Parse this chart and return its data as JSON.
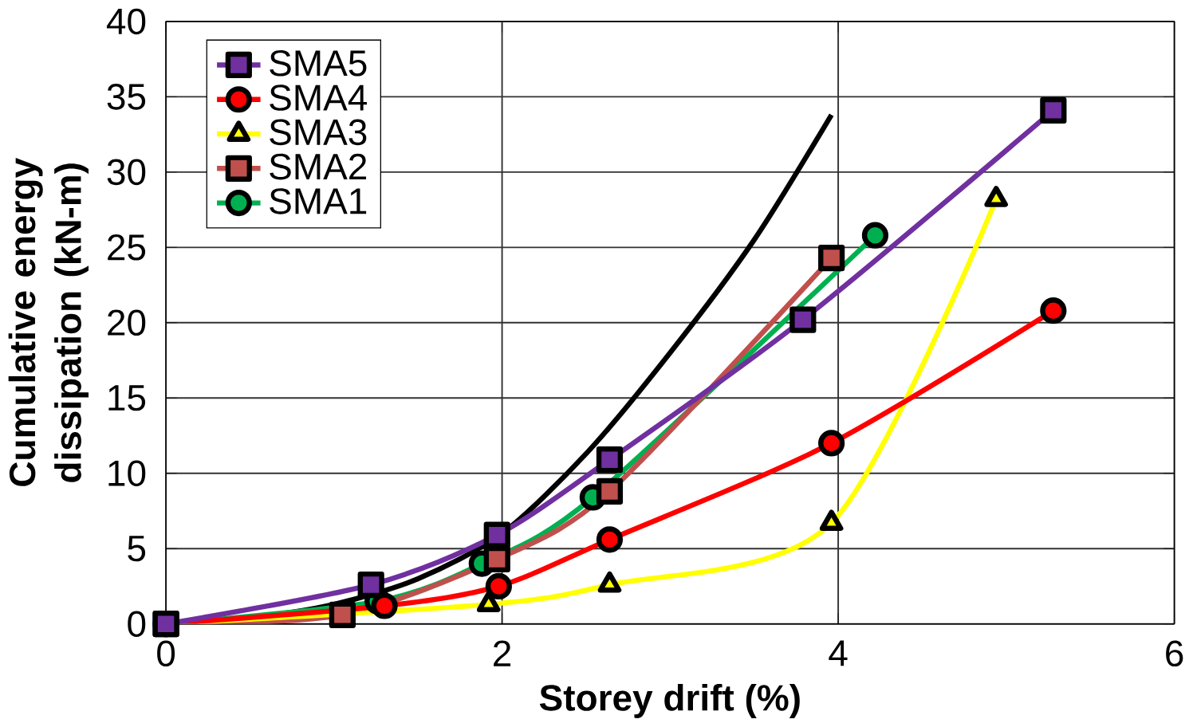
{
  "chart_data": {
    "type": "line",
    "xlabel": "Storey drift (%)",
    "ylabel": "Cumulative energy dissipation (kN-m)",
    "xlim": [
      0,
      6
    ],
    "ylim": [
      0,
      40
    ],
    "xticks": [
      0,
      2,
      4,
      6
    ],
    "yticks": [
      0,
      5,
      10,
      15,
      20,
      25,
      30,
      35,
      40
    ],
    "grid": true,
    "legend": "top left",
    "series": [
      {
        "name": "SMA5",
        "color": "#7030a0",
        "marker": "square",
        "x": [
          0,
          1.22,
          1.97,
          2.64,
          3.79,
          5.28
        ],
        "values": [
          0,
          2.6,
          5.9,
          10.9,
          20.2,
          34.1
        ]
      },
      {
        "name": "SMA4",
        "color": "#ff0000",
        "marker": "circle",
        "x": [
          0,
          1.3,
          1.98,
          2.64,
          3.96,
          5.28
        ],
        "values": [
          0,
          1.2,
          2.5,
          5.6,
          12.0,
          20.8
        ]
      },
      {
        "name": "SMA3",
        "color": "#ffff00",
        "marker": "triangle",
        "x": [
          0,
          1.92,
          2.64,
          3.96,
          4.94
        ],
        "values": [
          0,
          1.3,
          2.6,
          6.7,
          28.2
        ]
      },
      {
        "name": "SMA2",
        "color": "#c0504d",
        "marker": "square",
        "x": [
          0,
          1.05,
          1.97,
          2.64,
          3.96
        ],
        "values": [
          0,
          0.6,
          4.3,
          8.8,
          24.3
        ]
      },
      {
        "name": "SMA1",
        "color": "#00b050",
        "marker": "circle",
        "x": [
          0,
          1.26,
          1.88,
          2.54,
          4.22
        ],
        "values": [
          0,
          1.5,
          4.0,
          8.4,
          25.8
        ]
      },
      {
        "color": "#000000",
        "marker": "none",
        "x": [
          0,
          0.5,
          1,
          1.5,
          2,
          2.5,
          3,
          3.5,
          3.96
        ],
        "values": [
          0,
          0.4,
          1.3,
          3.0,
          6.0,
          11.3,
          18.0,
          25.5,
          33.8
        ]
      }
    ]
  }
}
